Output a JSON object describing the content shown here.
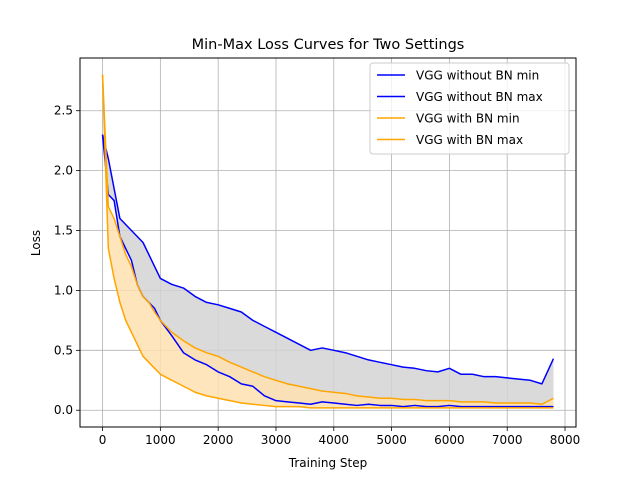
{
  "chart_data": {
    "type": "line",
    "title": "Min-Max Loss Curves for Two Settings",
    "xlabel": "Training Step",
    "ylabel": "Loss",
    "xlim": [
      -390,
      8190
    ],
    "ylim": [
      -0.14,
      2.94
    ],
    "xticks": [
      0,
      1000,
      2000,
      3000,
      4000,
      5000,
      6000,
      7000,
      8000
    ],
    "xtick_labels": [
      "0",
      "1000",
      "2000",
      "3000",
      "4000",
      "5000",
      "6000",
      "7000",
      "8000"
    ],
    "yticks": [
      0.0,
      0.5,
      1.0,
      1.5,
      2.0,
      2.5
    ],
    "ytick_labels": [
      "0.0",
      "0.5",
      "1.0",
      "1.5",
      "2.0",
      "2.5"
    ],
    "grid": true,
    "legend_position": "top-right",
    "fills": [
      {
        "between": [
          "VGG without BN min",
          "VGG without BN max"
        ],
        "color": "#d3d3d3"
      },
      {
        "between": [
          "VGG with BN min",
          "VGG with BN max"
        ],
        "color": "#ffe0b0"
      }
    ],
    "x": [
      0,
      100,
      200,
      300,
      400,
      500,
      600,
      700,
      800,
      900,
      1000,
      1200,
      1400,
      1600,
      1800,
      2000,
      2200,
      2400,
      2600,
      2800,
      3000,
      3200,
      3400,
      3600,
      3800,
      4000,
      4200,
      4400,
      4600,
      4800,
      5000,
      5200,
      5400,
      5600,
      5800,
      6000,
      6200,
      6400,
      6600,
      6800,
      7000,
      7200,
      7400,
      7600,
      7800
    ],
    "series": [
      {
        "name": "VGG without BN min",
        "color": "#0000ff",
        "values": [
          2.3,
          1.8,
          1.75,
          1.45,
          1.35,
          1.25,
          1.05,
          0.95,
          0.9,
          0.85,
          0.75,
          0.62,
          0.48,
          0.42,
          0.38,
          0.32,
          0.28,
          0.22,
          0.2,
          0.12,
          0.08,
          0.07,
          0.06,
          0.05,
          0.07,
          0.06,
          0.05,
          0.04,
          0.05,
          0.04,
          0.04,
          0.03,
          0.04,
          0.03,
          0.03,
          0.04,
          0.03,
          0.03,
          0.03,
          0.03,
          0.03,
          0.03,
          0.03,
          0.03,
          0.03
        ]
      },
      {
        "name": "VGG without BN max",
        "color": "#0000ff",
        "values": [
          2.3,
          2.1,
          1.85,
          1.6,
          1.55,
          1.5,
          1.45,
          1.4,
          1.3,
          1.2,
          1.1,
          1.05,
          1.02,
          0.95,
          0.9,
          0.88,
          0.85,
          0.82,
          0.75,
          0.7,
          0.65,
          0.6,
          0.55,
          0.5,
          0.52,
          0.5,
          0.48,
          0.45,
          0.42,
          0.4,
          0.38,
          0.36,
          0.35,
          0.33,
          0.32,
          0.35,
          0.3,
          0.3,
          0.28,
          0.28,
          0.27,
          0.26,
          0.25,
          0.22,
          0.43
        ]
      },
      {
        "name": "VGG with BN min",
        "color": "#ffa500",
        "values": [
          2.8,
          1.35,
          1.1,
          0.9,
          0.75,
          0.65,
          0.55,
          0.45,
          0.4,
          0.35,
          0.3,
          0.25,
          0.2,
          0.15,
          0.12,
          0.1,
          0.08,
          0.06,
          0.05,
          0.04,
          0.03,
          0.03,
          0.03,
          0.02,
          0.02,
          0.02,
          0.02,
          0.02,
          0.02,
          0.02,
          0.02,
          0.02,
          0.02,
          0.02,
          0.02,
          0.02,
          0.02,
          0.02,
          0.02,
          0.02,
          0.02,
          0.02,
          0.02,
          0.02,
          0.02
        ]
      },
      {
        "name": "VGG with BN max",
        "color": "#ffa500",
        "values": [
          2.8,
          1.7,
          1.6,
          1.45,
          1.3,
          1.2,
          1.05,
          0.95,
          0.9,
          0.82,
          0.75,
          0.65,
          0.58,
          0.52,
          0.48,
          0.45,
          0.4,
          0.36,
          0.32,
          0.28,
          0.25,
          0.22,
          0.2,
          0.18,
          0.16,
          0.15,
          0.14,
          0.12,
          0.11,
          0.1,
          0.1,
          0.09,
          0.09,
          0.08,
          0.08,
          0.08,
          0.07,
          0.07,
          0.07,
          0.06,
          0.06,
          0.06,
          0.06,
          0.05,
          0.1
        ]
      }
    ]
  }
}
